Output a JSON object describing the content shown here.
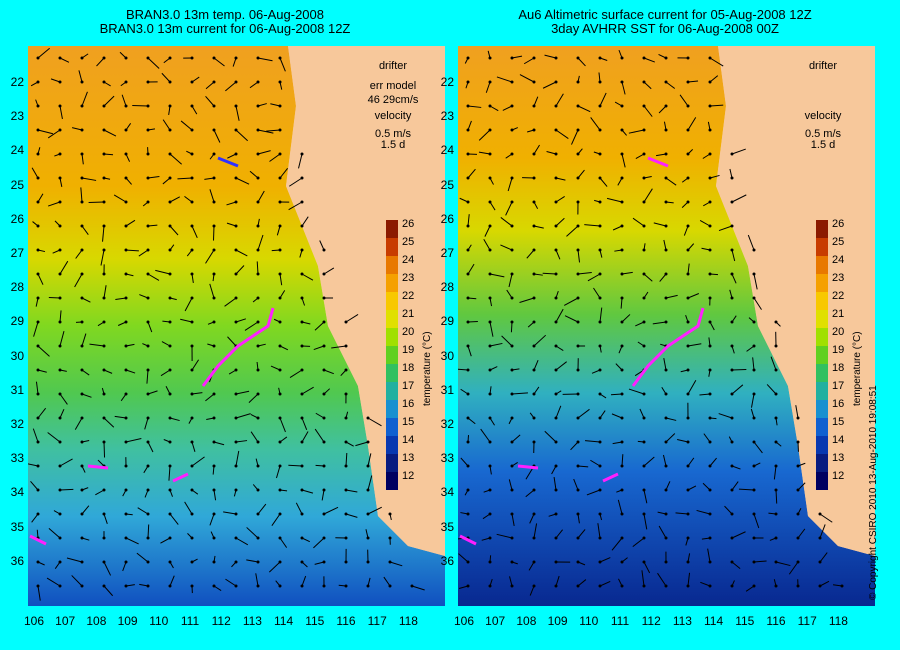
{
  "titles": {
    "left_line1": "BRAN3.0 13m temp. 06-Aug-2008",
    "left_line2": "BRAN3.0 13m current for 06-Aug-2008 12Z",
    "right_line1": "Au6 Altimetric surface current for 05-Aug-2008 12Z",
    "right_line2": "3day AVHRR SST for 06-Aug-2008 00Z"
  },
  "legend": {
    "drifter": "drifter",
    "err_model": "err model",
    "err_value": "46 29cm/s",
    "velocity": "velocity",
    "velocity_scale": "0.5 m/s",
    "velocity_time": "1.5 d"
  },
  "colorbar": {
    "title": "temperature (°C)",
    "ticks": [
      "26",
      "25",
      "24",
      "23",
      "22",
      "21",
      "20",
      "19",
      "18",
      "17",
      "16",
      "15",
      "14",
      "13",
      "12"
    ],
    "colors": [
      "#8b1a00",
      "#c83c00",
      "#e87800",
      "#f5a000",
      "#f8c800",
      "#e0e000",
      "#a0e000",
      "#60d020",
      "#30c060",
      "#20b0a0",
      "#1890d0",
      "#1060d0",
      "#0838b0",
      "#081c80",
      "#000060"
    ]
  },
  "axes": {
    "lat": [
      "22",
      "23",
      "24",
      "25",
      "26",
      "27",
      "28",
      "29",
      "30",
      "31",
      "32",
      "33",
      "34",
      "35",
      "36"
    ],
    "lon": [
      "106",
      "107",
      "108",
      "109",
      "110",
      "111",
      "112",
      "113",
      "114",
      "115",
      "116",
      "117",
      "118"
    ]
  },
  "colors": {
    "background": "#00ffff",
    "land": "#f7c89b",
    "drifter": "#ff20ff",
    "contour": "#60e0e0"
  },
  "copyright": "© Copyright CSIRO 2010   13-Aug-2010 19:08:51"
}
